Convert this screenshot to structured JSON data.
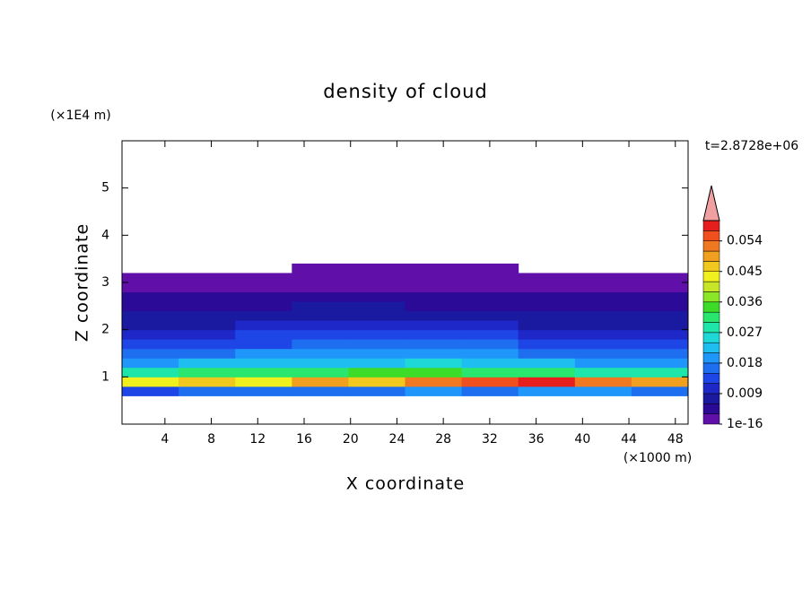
{
  "chart_data": {
    "type": "contour",
    "title": "density of cloud",
    "x_label": "X coordinate",
    "y_label": "Z coordinate",
    "x_unit": "(×1000 m)",
    "y_unit": "(×1E4 m)",
    "time_label": "t=2.8728e+06",
    "xlim": [
      0.3,
      49.1
    ],
    "ylim": [
      0,
      6
    ],
    "xticks": [
      4,
      8,
      12,
      16,
      20,
      24,
      28,
      32,
      36,
      40,
      44,
      48
    ],
    "yticks": [
      1,
      2,
      3,
      4,
      5
    ],
    "x": [
      2.74,
      7.62,
      12.5,
      17.38,
      22.26,
      27.14,
      32.02,
      36.9,
      41.78,
      46.66
    ],
    "y": [
      0.7,
      0.9,
      1.1,
      1.3,
      1.5,
      1.7,
      1.9,
      2.1,
      2.3,
      2.5,
      2.7,
      2.9,
      3.1,
      3.3
    ],
    "z": [
      [
        0.014,
        0.016,
        0.015,
        0.017,
        0.016,
        0.018,
        0.017,
        0.019,
        0.018,
        0.016
      ],
      [
        0.042,
        0.045,
        0.044,
        0.048,
        0.047,
        0.052,
        0.055,
        0.057,
        0.053,
        0.05
      ],
      [
        0.028,
        0.03,
        0.032,
        0.031,
        0.034,
        0.033,
        0.032,
        0.031,
        0.029,
        0.028
      ],
      [
        0.02,
        0.021,
        0.022,
        0.023,
        0.022,
        0.024,
        0.022,
        0.021,
        0.02,
        0.019
      ],
      [
        0.016,
        0.017,
        0.018,
        0.019,
        0.018,
        0.019,
        0.018,
        0.017,
        0.016,
        0.016
      ],
      [
        0.013,
        0.014,
        0.014,
        0.015,
        0.015,
        0.016,
        0.015,
        0.014,
        0.013,
        0.013
      ],
      [
        0.01,
        0.011,
        0.012,
        0.012,
        0.013,
        0.012,
        0.012,
        0.011,
        0.011,
        0.01
      ],
      [
        0.008,
        0.008,
        0.009,
        0.009,
        0.009,
        0.009,
        0.009,
        0.008,
        0.008,
        0.008
      ],
      [
        0.006,
        0.006,
        0.007,
        0.007,
        0.007,
        0.007,
        0.006,
        0.006,
        0.006,
        0.006
      ],
      [
        0.005,
        0.005,
        0.005,
        0.006,
        0.006,
        0.005,
        0.005,
        0.005,
        0.005,
        0.005
      ],
      [
        0.004,
        0.004,
        0.004,
        0.004,
        0.004,
        0.004,
        0.004,
        0.004,
        0.004,
        0.004
      ],
      [
        0.002,
        0.002,
        0.002,
        0.002,
        0.002,
        0.002,
        0.002,
        0.002,
        0.002,
        0.002
      ],
      [
        0.001,
        0.001,
        0.001,
        0.001,
        0.001,
        0.001,
        0.001,
        0.001,
        0.001,
        0.001
      ],
      [
        null,
        null,
        null,
        0.001,
        0.001,
        0.001,
        0.001,
        null,
        null,
        null
      ]
    ],
    "clim": [
      0,
      0.06
    ],
    "colors": [
      "#6010a8",
      "#2a0a96",
      "#1a1aa0",
      "#1e28c8",
      "#1e46e6",
      "#1e6ef0",
      "#1e96fa",
      "#1ebef0",
      "#1ed7d7",
      "#1ee6aa",
      "#28e66e",
      "#3cdc28",
      "#8ce628",
      "#c8e628",
      "#f0f01e",
      "#f0c81e",
      "#f0a01e",
      "#f07820",
      "#f0501e",
      "#e61e1e"
    ],
    "extend_color": "#f0a0a0",
    "colorbar_ticks": [
      {
        "value": 0,
        "label": "1e-16"
      },
      0.009,
      0.018,
      0.027,
      0.036,
      0.045,
      0.054
    ]
  }
}
